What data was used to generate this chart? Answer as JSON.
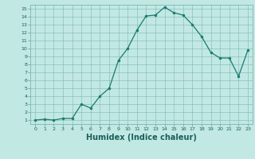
{
  "x": [
    0,
    1,
    2,
    3,
    4,
    5,
    6,
    7,
    8,
    9,
    10,
    11,
    12,
    13,
    14,
    15,
    16,
    17,
    18,
    19,
    20,
    21,
    22,
    23
  ],
  "y": [
    1,
    1.1,
    1.0,
    1.2,
    1.2,
    3.0,
    2.5,
    4.0,
    5.0,
    8.5,
    10.0,
    12.3,
    14.1,
    14.2,
    15.2,
    14.5,
    14.2,
    13.0,
    11.5,
    9.5,
    8.8,
    8.8,
    6.5,
    9.8
  ],
  "line_color": "#1a7a6e",
  "marker": "o",
  "marker_size": 2,
  "bg_color": "#c2e8e4",
  "grid_color": "#7ab8b0",
  "tick_color": "#1a5f58",
  "xlabel": "Humidex (Indice chaleur)",
  "xlabel_fontsize": 7,
  "xlim": [
    -0.5,
    23.5
  ],
  "ylim": [
    0.5,
    15.5
  ],
  "yticks": [
    1,
    2,
    3,
    4,
    5,
    6,
    7,
    8,
    9,
    10,
    11,
    12,
    13,
    14,
    15
  ],
  "xticks": [
    0,
    1,
    2,
    3,
    4,
    5,
    6,
    7,
    8,
    9,
    10,
    11,
    12,
    13,
    14,
    15,
    16,
    17,
    18,
    19,
    20,
    21,
    22,
    23
  ]
}
